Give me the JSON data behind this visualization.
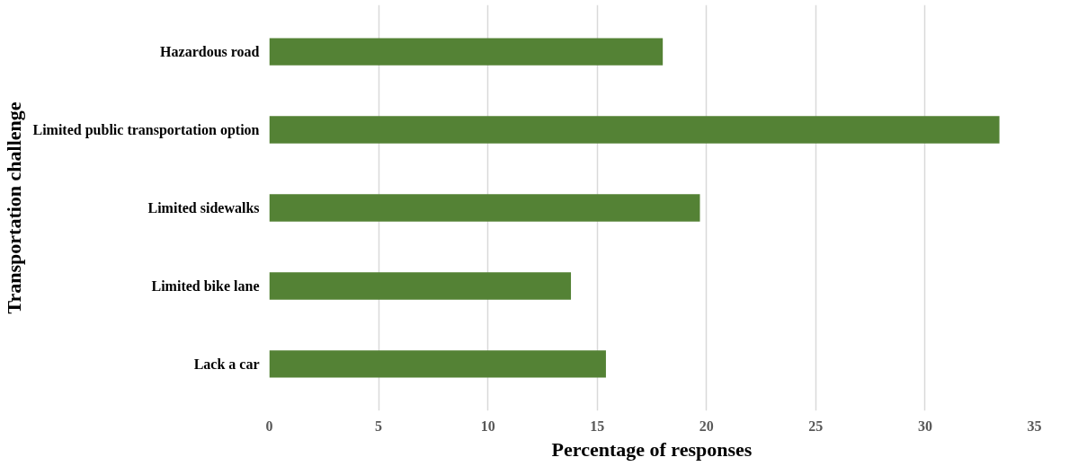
{
  "chart_data": {
    "type": "bar",
    "orientation": "horizontal",
    "xlabel": "Percentage of responses",
    "ylabel": "Transportation challenge",
    "categories": [
      "Hazardous road",
      "Limited public transportation option",
      "Limited sidewalks",
      "Limited bike lane",
      "Lack a car"
    ],
    "values": [
      18.0,
      33.4,
      19.7,
      13.8,
      15.4
    ],
    "color": "#548235",
    "xlim": [
      0,
      35
    ],
    "xticks": [
      0,
      5,
      10,
      15,
      20,
      25,
      30,
      35
    ],
    "grid": "x"
  }
}
